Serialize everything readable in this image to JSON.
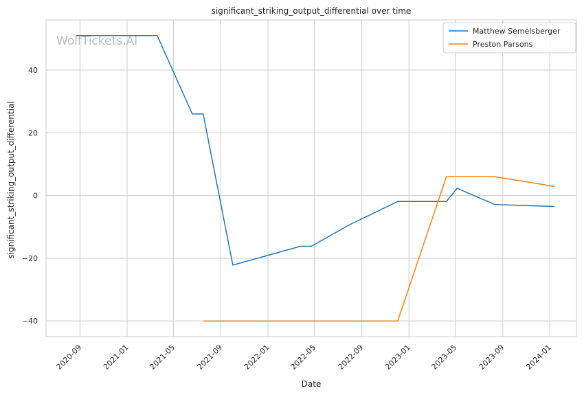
{
  "chart_data": {
    "type": "line",
    "title": "significant_striking_output_differential over time",
    "xlabel": "Date",
    "ylabel": "significant_striking_output_differential",
    "watermark": "WolfTickets.AI",
    "xlim": [
      "2020-06-05",
      "2024-03-10"
    ],
    "ylim": [
      -45,
      56
    ],
    "x_ticks": [
      "2020-09-01",
      "2021-01-01",
      "2021-05-01",
      "2021-09-01",
      "2022-01-01",
      "2022-05-01",
      "2022-09-01",
      "2023-01-01",
      "2023-05-01",
      "2023-09-01",
      "2024-01-01"
    ],
    "x_tick_labels": [
      "2020-09",
      "2021-01",
      "2021-05",
      "2021-09",
      "2022-01",
      "2022-05",
      "2022-09",
      "2023-01",
      "2023-05",
      "2023-09",
      "2024-01"
    ],
    "y_ticks": [
      -40,
      -20,
      0,
      20,
      40
    ],
    "y_tick_labels": [
      "−40",
      "−20",
      "0",
      "20",
      "40"
    ],
    "grid": true,
    "legend_position": "top-right",
    "series": [
      {
        "name": "Matthew Semelsberger",
        "color": "#1f77b4",
        "points": [
          [
            "2020-08-22",
            51
          ],
          [
            "2021-03-20",
            51
          ],
          [
            "2021-06-19",
            26
          ],
          [
            "2021-07-17",
            26
          ],
          [
            "2021-10-02",
            -22.2
          ],
          [
            "2022-03-26",
            -16.2
          ],
          [
            "2022-04-23",
            -16.2
          ],
          [
            "2022-07-30",
            -9.4
          ],
          [
            "2022-12-03",
            -1.9
          ],
          [
            "2023-04-08",
            -1.9
          ],
          [
            "2023-05-06",
            2.3
          ],
          [
            "2023-08-12",
            -2.9
          ],
          [
            "2024-01-13",
            -3.5
          ]
        ]
      },
      {
        "name": "Preston Parsons",
        "color": "#ff7f0e",
        "points": [
          [
            "2021-07-17",
            -40
          ],
          [
            "2022-12-03",
            -40
          ],
          [
            "2023-04-08",
            6
          ],
          [
            "2023-08-12",
            6
          ],
          [
            "2024-01-13",
            2.9
          ]
        ]
      }
    ]
  }
}
